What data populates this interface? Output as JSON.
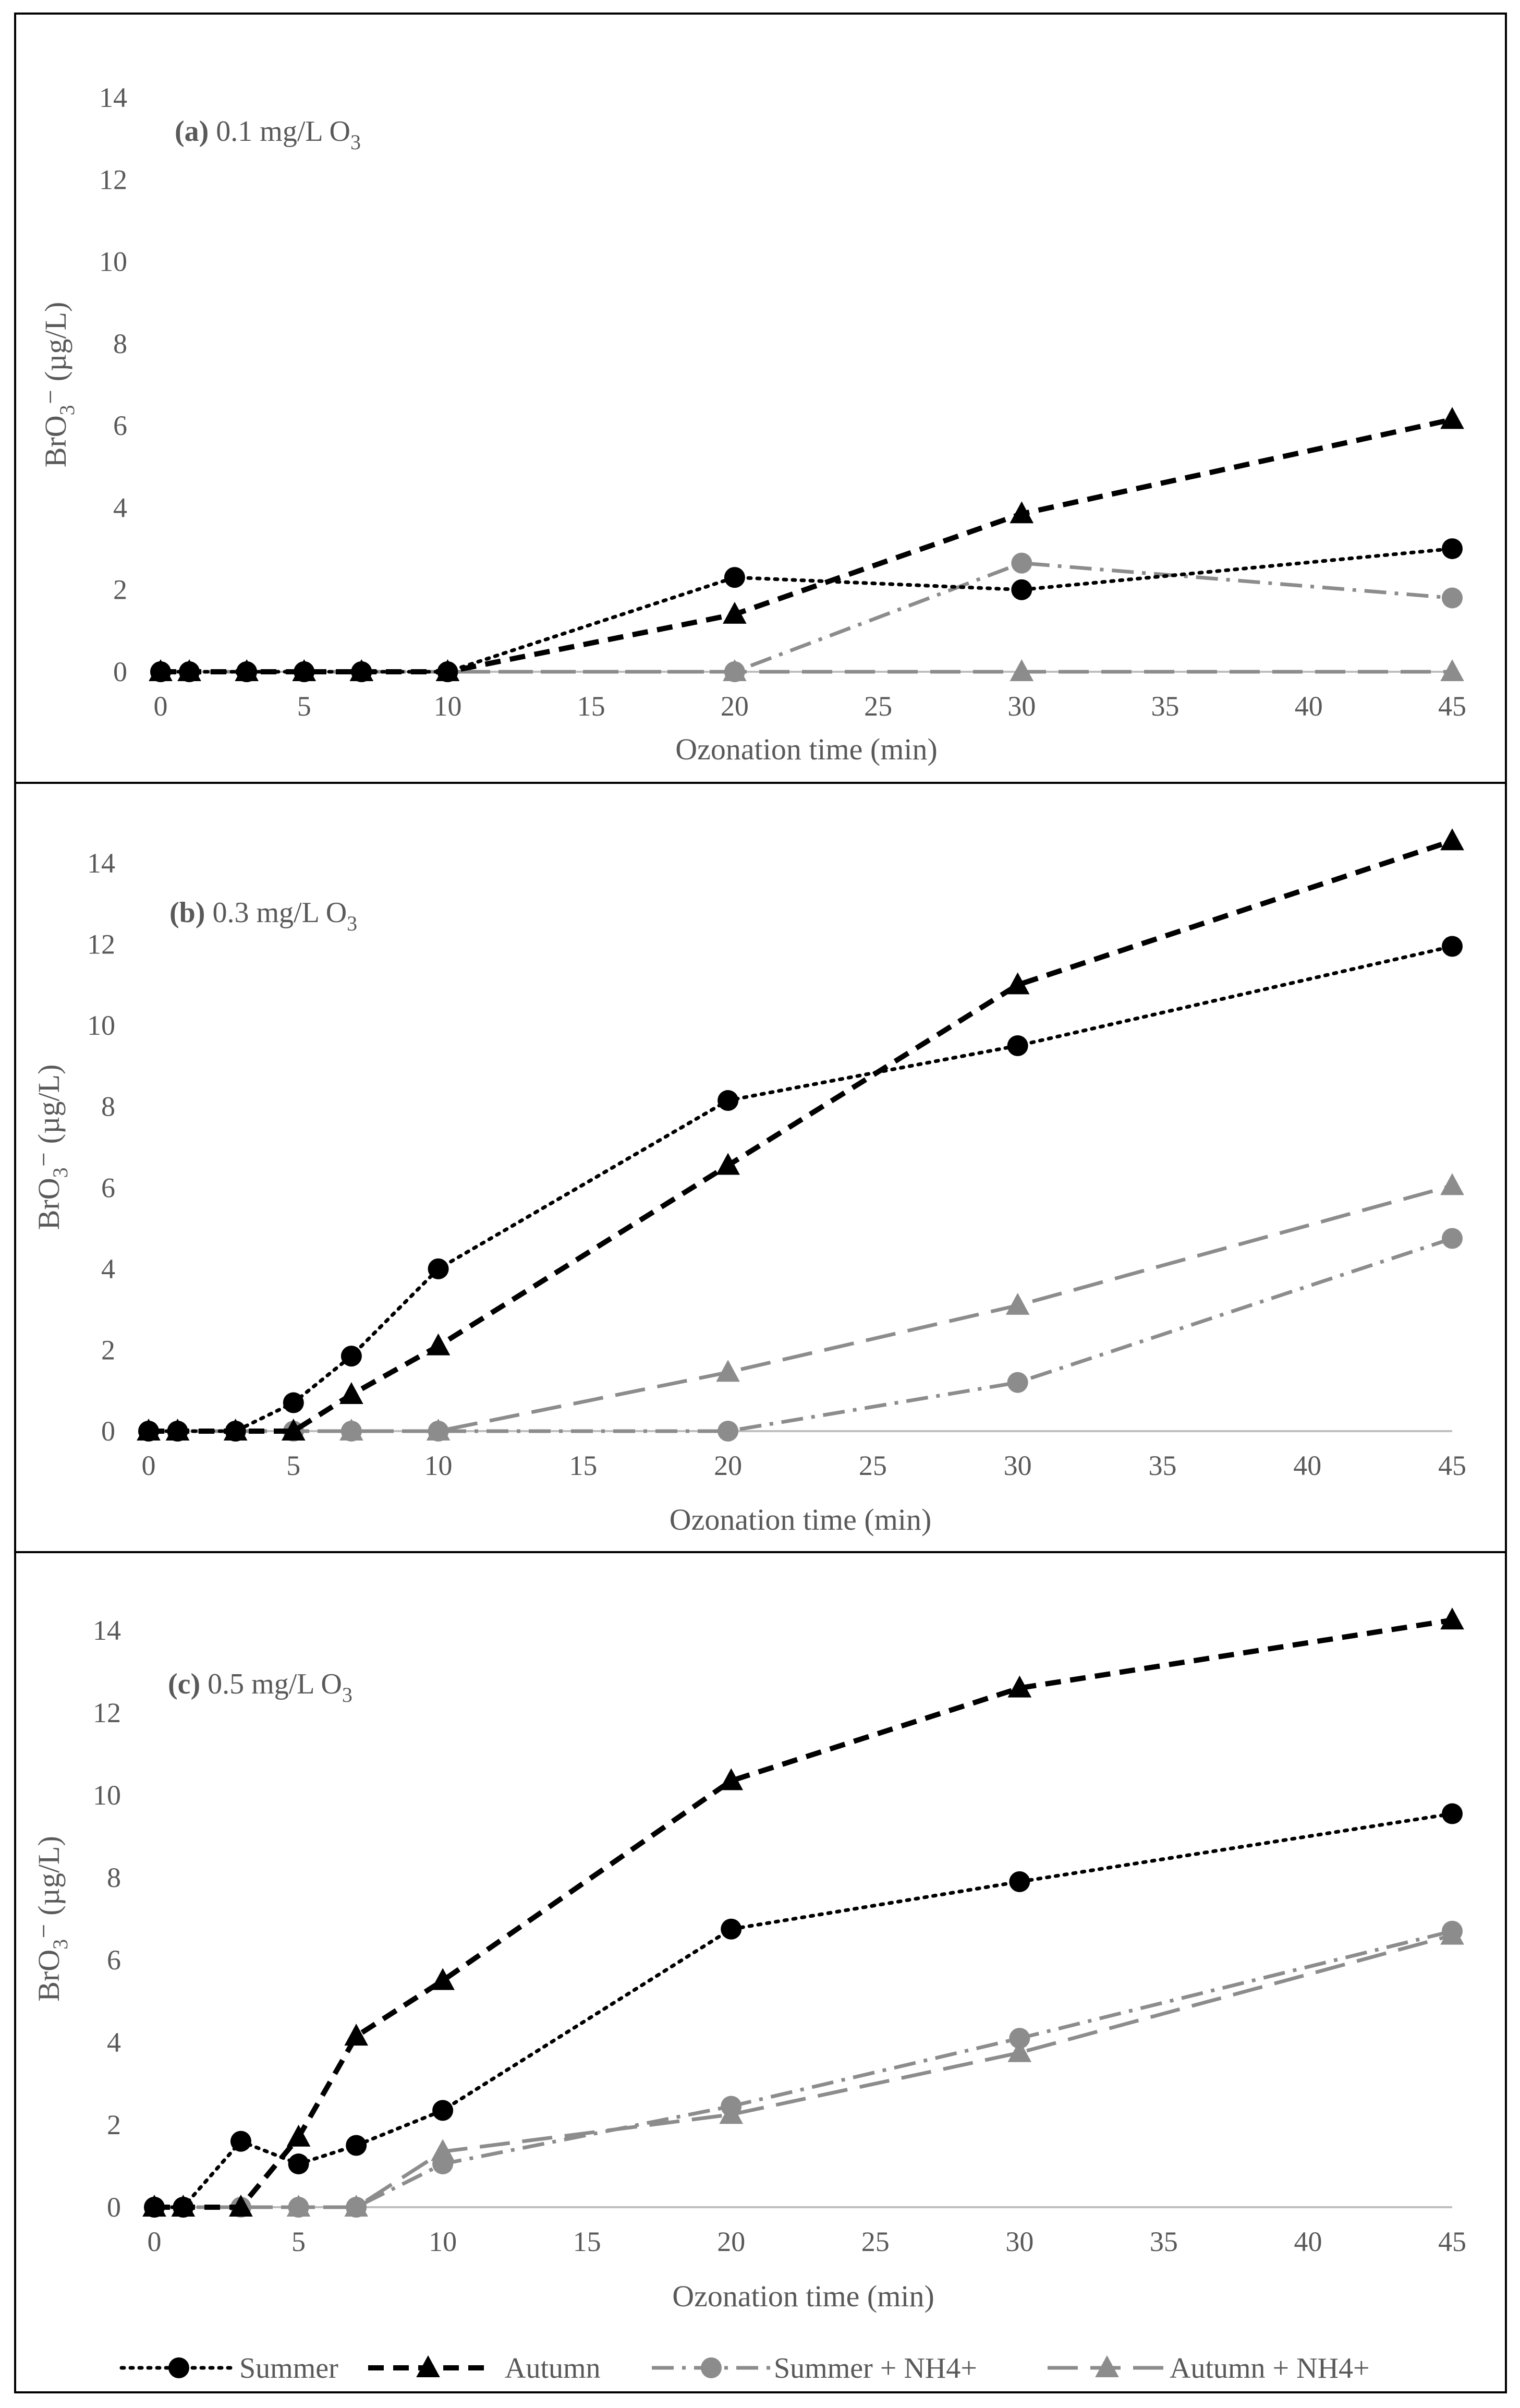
{
  "figure": {
    "legend": [
      {
        "key": "summer",
        "label": "Summer"
      },
      {
        "key": "autumn",
        "label": "Autumn"
      },
      {
        "key": "summer_nh4",
        "label": "Summer + NH4+"
      },
      {
        "key": "autumn_nh4",
        "label": "Autumn + NH4+"
      }
    ],
    "colors": {
      "black": "#000000",
      "gray": "#8c8c8c",
      "axis": "#bfbfbf",
      "tick_text": "#595959",
      "label_text": "#595959"
    }
  },
  "chart_data": [
    {
      "type": "line",
      "panel_tag": "(a)",
      "panel_condition": "0.1 mg/L O",
      "panel_subscript": "3",
      "ylabel_main": "BrO",
      "ylabel_sub": "3",
      "ylabel_rest": "⁻ (µg/L)",
      "xlabel": "Ozonation time (min)",
      "xlim": [
        0,
        45
      ],
      "ylim": [
        0,
        14
      ],
      "xticks": [
        "0",
        "5",
        "10",
        "15",
        "20",
        "25",
        "30",
        "35",
        "40",
        "45"
      ],
      "yticks": [
        "0",
        "2",
        "4",
        "6",
        "8",
        "10",
        "12",
        "14"
      ],
      "series": [
        {
          "name": "Summer",
          "key": "summer",
          "x": [
            0,
            1,
            3,
            5,
            7,
            10,
            20,
            30,
            45
          ],
          "y": [
            0,
            0,
            0,
            0,
            0,
            0,
            2.3,
            2.0,
            3.0
          ]
        },
        {
          "name": "Autumn",
          "key": "autumn",
          "x": [
            0,
            1,
            3,
            5,
            7,
            10,
            20,
            30,
            45
          ],
          "y": [
            0,
            0,
            0,
            0,
            0,
            0,
            1.4,
            3.85,
            6.15
          ]
        },
        {
          "name": "Summer + NH4+",
          "key": "summer_nh4",
          "x": [
            0,
            1,
            3,
            5,
            7,
            10,
            20,
            30,
            45
          ],
          "y": [
            0,
            0,
            0,
            0,
            0,
            0,
            0,
            2.65,
            1.8
          ]
        },
        {
          "name": "Autumn + NH4+",
          "key": "autumn_nh4",
          "x": [
            0,
            1,
            3,
            5,
            7,
            10,
            20,
            30,
            45
          ],
          "y": [
            0,
            0,
            0,
            0,
            0,
            0,
            0,
            0,
            0
          ]
        }
      ]
    },
    {
      "type": "line",
      "panel_tag": "(b)",
      "panel_condition": "0.3 mg/L O",
      "panel_subscript": "3",
      "ylabel_main": "BrO",
      "ylabel_sub": "3",
      "ylabel_rest": "⁻ (µg/L)",
      "xlabel": "Ozonation time (min)",
      "xlim": [
        0,
        45
      ],
      "ylim": [
        0,
        14
      ],
      "xticks": [
        "0",
        "5",
        "10",
        "15",
        "20",
        "25",
        "30",
        "35",
        "40",
        "45"
      ],
      "yticks": [
        "0",
        "2",
        "4",
        "6",
        "8",
        "10",
        "12",
        "14"
      ],
      "series": [
        {
          "name": "Summer",
          "key": "summer",
          "x": [
            0,
            1,
            3,
            5,
            7,
            10,
            20,
            30,
            45
          ],
          "y": [
            0,
            0,
            0,
            0.7,
            1.85,
            4.0,
            8.15,
            9.5,
            11.95
          ]
        },
        {
          "name": "Autumn",
          "key": "autumn",
          "x": [
            0,
            1,
            3,
            5,
            7,
            10,
            20,
            30,
            45
          ],
          "y": [
            0,
            0,
            0,
            0,
            0.9,
            2.1,
            6.55,
            11.0,
            14.55
          ]
        },
        {
          "name": "Summer + NH4+",
          "key": "summer_nh4",
          "x": [
            0,
            1,
            3,
            5,
            7,
            10,
            20,
            30,
            45
          ],
          "y": [
            0,
            0,
            0,
            0,
            0,
            0,
            0,
            1.2,
            4.75
          ]
        },
        {
          "name": "Autumn + NH4+",
          "key": "autumn_nh4",
          "x": [
            0,
            1,
            3,
            5,
            7,
            10,
            20,
            30,
            45
          ],
          "y": [
            0,
            0,
            0,
            0,
            0,
            0,
            1.45,
            3.1,
            6.05
          ]
        }
      ]
    },
    {
      "type": "line",
      "panel_tag": "(c)",
      "panel_condition": "0.5 mg/L O",
      "panel_subscript": "3",
      "ylabel_main": "BrO",
      "ylabel_sub": "3",
      "ylabel_rest": "⁻ (µg/L)",
      "xlabel": "Ozonation time (min)",
      "xlim": [
        0,
        45
      ],
      "ylim": [
        0,
        14
      ],
      "xticks": [
        "0",
        "5",
        "10",
        "15",
        "20",
        "25",
        "30",
        "35",
        "40",
        "45"
      ],
      "yticks": [
        "0",
        "2",
        "4",
        "6",
        "8",
        "10",
        "12",
        "14"
      ],
      "series": [
        {
          "name": "Summer",
          "key": "summer",
          "x": [
            0,
            1,
            3,
            5,
            7,
            10,
            20,
            30,
            45
          ],
          "y": [
            0,
            0,
            1.6,
            1.05,
            1.5,
            2.35,
            6.75,
            7.9,
            9.55
          ]
        },
        {
          "name": "Autumn",
          "key": "autumn",
          "x": [
            0,
            1,
            3,
            5,
            7,
            10,
            20,
            30,
            45
          ],
          "y": [
            0,
            0,
            0,
            1.7,
            4.15,
            5.5,
            10.35,
            12.6,
            14.25
          ]
        },
        {
          "name": "Summer + NH4+",
          "key": "summer_nh4",
          "x": [
            0,
            1,
            3,
            5,
            7,
            10,
            20,
            30,
            45
          ],
          "y": [
            0,
            0,
            0,
            0,
            0,
            1.05,
            2.45,
            4.1,
            6.7
          ]
        },
        {
          "name": "Autumn + NH4+",
          "key": "autumn_nh4",
          "x": [
            0,
            1,
            3,
            5,
            7,
            10,
            20,
            30,
            45
          ],
          "y": [
            0,
            0,
            0,
            0,
            0,
            1.35,
            2.25,
            3.75,
            6.6
          ]
        }
      ]
    }
  ]
}
